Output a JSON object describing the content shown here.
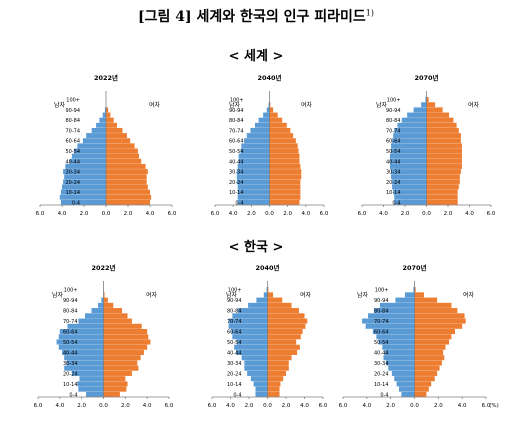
{
  "figure_title": "[그림 4] 세계와 한국의 인구 피라미드",
  "footnote_mark": "1)",
  "colors": {
    "male": "#5b9bd5",
    "female": "#ed7d31",
    "axis": "#7f7f7f"
  },
  "sections": [
    {
      "title": "< 세계 >"
    },
    {
      "title": "< 한국 >"
    }
  ],
  "chart_data": [
    {
      "type": "bar",
      "orientation": "horizontal",
      "group": "세계",
      "title": "2022년",
      "male_label": "남자",
      "female_label": "여자",
      "age_groups": [
        "0-4",
        "5-9",
        "10-14",
        "15-19",
        "20-24",
        "25-29",
        "30-34",
        "35-39",
        "40-44",
        "45-49",
        "50-54",
        "55-59",
        "60-64",
        "65-69",
        "70-74",
        "75-79",
        "80-84",
        "85-89",
        "90-94",
        "95-99",
        "100+"
      ],
      "series": [
        {
          "name": "남자",
          "values": [
            4.1,
            4.2,
            4.1,
            4.0,
            3.9,
            3.8,
            3.9,
            3.7,
            3.3,
            3.1,
            2.9,
            2.6,
            2.1,
            1.8,
            1.3,
            0.9,
            0.6,
            0.3,
            0.1,
            0.0,
            0.0
          ]
        },
        {
          "name": "여자",
          "values": [
            4.0,
            4.1,
            4.0,
            3.8,
            3.7,
            3.7,
            3.8,
            3.6,
            3.2,
            3.0,
            2.9,
            2.6,
            2.2,
            1.9,
            1.5,
            1.0,
            0.7,
            0.4,
            0.2,
            0.0,
            0.0
          ]
        }
      ],
      "xlim": [
        -6,
        6
      ],
      "x_ticks": [
        "6.0",
        "4.0",
        "2.0",
        "0.0",
        "2.0",
        "4.0",
        "6.0"
      ]
    },
    {
      "type": "bar",
      "orientation": "horizontal",
      "group": "세계",
      "title": "2040년",
      "male_label": "남자",
      "female_label": "여자",
      "age_groups": [
        "0-4",
        "5-9",
        "10-14",
        "15-19",
        "20-24",
        "25-29",
        "30-34",
        "35-39",
        "40-44",
        "45-49",
        "50-54",
        "55-59",
        "60-64",
        "65-69",
        "70-74",
        "75-79",
        "80-84",
        "85-89",
        "90-94",
        "95-99",
        "100+"
      ],
      "series": [
        {
          "name": "남자",
          "values": [
            3.5,
            3.5,
            3.5,
            3.5,
            3.6,
            3.6,
            3.6,
            3.5,
            3.4,
            3.4,
            3.2,
            3.1,
            2.8,
            2.5,
            2.1,
            1.6,
            1.2,
            0.7,
            0.3,
            0.1,
            0.0
          ]
        },
        {
          "name": "여자",
          "values": [
            3.3,
            3.4,
            3.4,
            3.4,
            3.4,
            3.5,
            3.5,
            3.4,
            3.3,
            3.3,
            3.2,
            3.1,
            2.9,
            2.6,
            2.3,
            1.9,
            1.4,
            0.9,
            0.4,
            0.1,
            0.0
          ]
        }
      ],
      "xlim": [
        -6,
        6
      ],
      "x_ticks": [
        "6.0",
        "4.0",
        "2.0",
        "0.0",
        "2.0",
        "4.0",
        "6.0"
      ]
    },
    {
      "type": "bar",
      "orientation": "horizontal",
      "group": "세계",
      "title": "2070년",
      "male_label": "남자",
      "female_label": "여자",
      "age_groups": [
        "0-4",
        "5-9",
        "10-14",
        "15-19",
        "20-24",
        "25-29",
        "30-34",
        "35-39",
        "40-44",
        "45-49",
        "50-54",
        "55-59",
        "60-64",
        "65-69",
        "70-74",
        "75-79",
        "80-84",
        "85-89",
        "90-94",
        "95-99",
        "100+"
      ],
      "series": [
        {
          "name": "남자",
          "values": [
            3.0,
            3.0,
            3.1,
            3.2,
            3.2,
            3.3,
            3.3,
            3.4,
            3.4,
            3.4,
            3.3,
            3.3,
            3.2,
            3.1,
            3.0,
            2.7,
            2.3,
            1.8,
            1.2,
            0.5,
            0.1
          ]
        },
        {
          "name": "여자",
          "values": [
            2.9,
            2.9,
            2.9,
            3.0,
            3.1,
            3.1,
            3.2,
            3.3,
            3.3,
            3.3,
            3.3,
            3.3,
            3.2,
            3.2,
            3.0,
            2.8,
            2.5,
            2.1,
            1.5,
            0.8,
            0.2
          ]
        }
      ],
      "xlim": [
        -6,
        6
      ],
      "x_ticks": [
        "6.0",
        "4.0",
        "2.0",
        "0.0",
        "2.0",
        "4.0",
        "6.0"
      ]
    },
    {
      "type": "bar",
      "orientation": "horizontal",
      "group": "한국",
      "title": "2022년",
      "male_label": "남자",
      "female_label": "여자",
      "age_groups": [
        "0-4",
        "5-9",
        "10-14",
        "15-19",
        "20-24",
        "25-29",
        "30-34",
        "35-39",
        "40-44",
        "45-49",
        "50-54",
        "55-59",
        "60-64",
        "65-69",
        "70-74",
        "75-79",
        "80-84",
        "85-89",
        "90-94",
        "95-99",
        "100+"
      ],
      "series": [
        {
          "name": "남자",
          "values": [
            1.6,
            2.3,
            2.4,
            2.2,
            2.9,
            3.6,
            3.4,
            3.6,
            3.8,
            4.1,
            4.3,
            4.1,
            4.0,
            3.3,
            2.3,
            1.7,
            1.1,
            0.5,
            0.2,
            0.0,
            0.0
          ]
        },
        {
          "name": "여자",
          "values": [
            1.5,
            2.1,
            2.2,
            2.0,
            2.6,
            3.2,
            3.1,
            3.4,
            3.7,
            4.0,
            4.3,
            4.1,
            4.0,
            3.5,
            2.6,
            2.2,
            1.7,
            0.9,
            0.4,
            0.1,
            0.0
          ]
        }
      ],
      "xlim": [
        -6,
        6
      ],
      "x_ticks": [
        "6.0",
        "4.0",
        "2.0",
        "0.0",
        "2.0",
        "4.0",
        "6.0"
      ]
    },
    {
      "type": "bar",
      "orientation": "horizontal",
      "group": "한국",
      "title": "2040년",
      "male_label": "남자",
      "female_label": "여자",
      "age_groups": [
        "0-4",
        "5-9",
        "10-14",
        "15-19",
        "20-24",
        "25-29",
        "30-34",
        "35-39",
        "40-44",
        "45-49",
        "50-54",
        "55-59",
        "60-64",
        "65-69",
        "70-74",
        "75-79",
        "80-84",
        "85-89",
        "90-94",
        "95-99",
        "100+"
      ],
      "series": [
        {
          "name": "남자",
          "values": [
            1.3,
            1.3,
            1.5,
            1.8,
            2.2,
            2.5,
            2.5,
            2.8,
            3.4,
            3.6,
            3.3,
            3.8,
            3.9,
            4.2,
            4.2,
            3.8,
            3.2,
            2.1,
            1.2,
            0.4,
            0.1
          ]
        },
        {
          "name": "여자",
          "values": [
            1.3,
            1.3,
            1.4,
            1.7,
            2.0,
            2.3,
            2.3,
            2.6,
            3.2,
            3.5,
            3.1,
            3.6,
            3.8,
            4.1,
            4.3,
            4.0,
            3.4,
            2.6,
            1.6,
            0.6,
            0.1
          ]
        }
      ],
      "xlim": [
        -6,
        6
      ],
      "x_ticks": [
        "6.0",
        "4.0",
        "2.0",
        "0.0",
        "2.0",
        "4.0",
        "6.0"
      ]
    },
    {
      "type": "bar",
      "orientation": "horizontal",
      "group": "한국",
      "title": "2070년",
      "male_label": "남자",
      "female_label": "여자",
      "age_groups": [
        "0-4",
        "5-9",
        "10-14",
        "15-19",
        "20-24",
        "25-29",
        "30-34",
        "35-39",
        "40-44",
        "45-49",
        "50-54",
        "55-59",
        "60-64",
        "65-69",
        "70-74",
        "75-79",
        "80-84",
        "85-89",
        "90-94",
        "95-99",
        "100+"
      ],
      "series": [
        {
          "name": "남자",
          "values": [
            1.1,
            1.3,
            1.5,
            1.7,
            1.9,
            2.2,
            2.4,
            2.6,
            2.5,
            2.7,
            3.0,
            3.2,
            3.5,
            4.1,
            4.4,
            3.9,
            3.4,
            2.9,
            1.6,
            0.8,
            0.1
          ]
        },
        {
          "name": "여자",
          "values": [
            1.0,
            1.2,
            1.4,
            1.7,
            1.9,
            2.1,
            2.3,
            2.5,
            2.4,
            2.6,
            2.9,
            3.1,
            3.4,
            4.0,
            4.3,
            4.2,
            3.6,
            3.1,
            1.9,
            0.8,
            0.1
          ]
        }
      ],
      "xlim": [
        -6,
        6
      ],
      "x_ticks": [
        "6.0",
        "4.0",
        "2.0",
        "0.0",
        "2.0",
        "4.0",
        "6.0"
      ],
      "x_unit": "(%)"
    }
  ]
}
